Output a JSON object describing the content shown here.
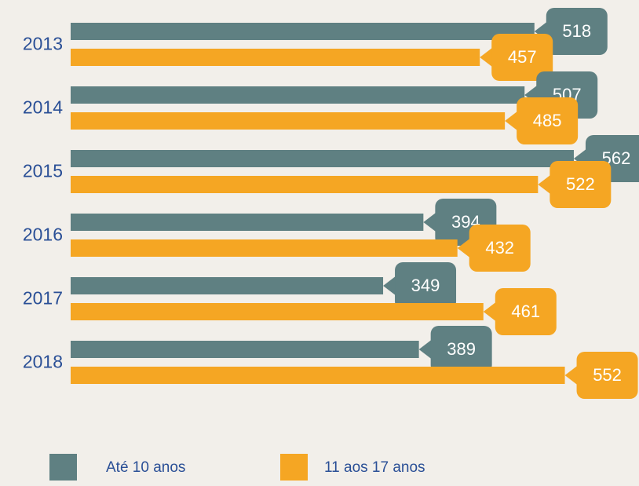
{
  "chart_data": {
    "type": "barh",
    "categories": [
      "2013",
      "2014",
      "2015",
      "2016",
      "2017",
      "2018"
    ],
    "series": [
      {
        "name": "Até 10 anos",
        "color": "#5f8082",
        "values": [
          518,
          507,
          562,
          394,
          349,
          389
        ]
      },
      {
        "name": "11 aos 17 anos",
        "color": "#f5a623",
        "values": [
          457,
          485,
          522,
          432,
          461,
          552
        ]
      }
    ]
  }
}
